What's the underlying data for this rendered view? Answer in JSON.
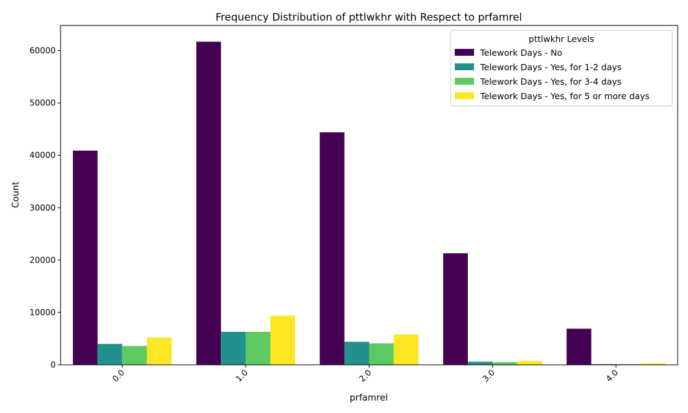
{
  "chart_data": {
    "type": "bar",
    "title": "Frequency Distribution of pttlwkhr with Respect to prfamrel",
    "xlabel": "prfamrel",
    "ylabel": "Count",
    "categories": [
      "0.0",
      "1.0",
      "2.0",
      "3.0",
      "4.0"
    ],
    "ylim": [
      0,
      64800
    ],
    "yticks": [
      0,
      10000,
      20000,
      30000,
      40000,
      50000,
      60000
    ],
    "grid": false,
    "legend": {
      "title": "pttlwkhr Levels",
      "position": "top-right"
    },
    "series": [
      {
        "name": "Telework Days - No",
        "color": "#440154",
        "values": [
          40900,
          61700,
          44400,
          21300,
          6900
        ]
      },
      {
        "name": "Telework Days - Yes, for 1-2 days",
        "color": "#21918c",
        "values": [
          4000,
          6300,
          4400,
          600,
          150
        ]
      },
      {
        "name": "Telework Days - Yes, for 3-4 days",
        "color": "#5ec962",
        "values": [
          3600,
          6300,
          4100,
          500,
          130
        ]
      },
      {
        "name": "Telework Days - Yes, for 5 or more days",
        "color": "#fde725",
        "values": [
          5200,
          9400,
          5800,
          750,
          280
        ]
      }
    ]
  }
}
